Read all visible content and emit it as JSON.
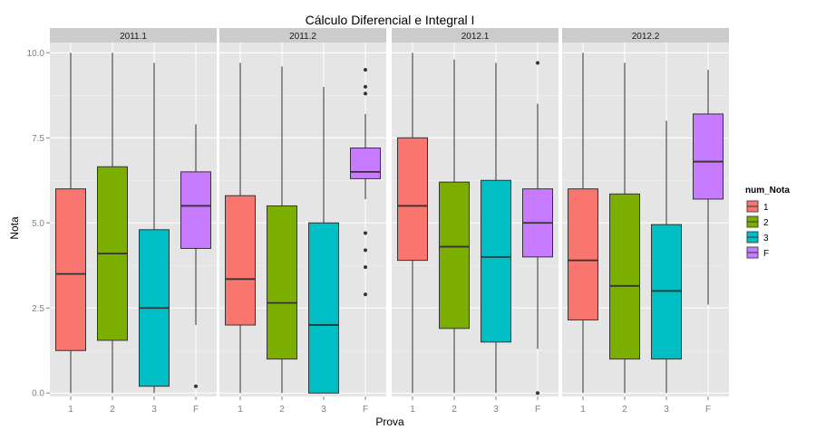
{
  "chart_data": {
    "type": "boxplot",
    "title": "Cálculo Diferencial e Integral I",
    "xlabel": "Prova",
    "ylabel": "Nota",
    "ylim": [
      -0.1,
      10.3
    ],
    "yticks": [
      0.0,
      2.5,
      5.0,
      7.5,
      10.0
    ],
    "ytick_labels": [
      "0.0",
      "2.5",
      "5.0",
      "7.5",
      "10.0"
    ],
    "categories": [
      "1",
      "2",
      "3",
      "F"
    ],
    "legend": {
      "title": "num_Nota",
      "position": "right",
      "entries": [
        {
          "label": "1",
          "color": "#F8766D"
        },
        {
          "label": "2",
          "color": "#7CAE00"
        },
        {
          "label": "3",
          "color": "#00BFC4"
        },
        {
          "label": "F",
          "color": "#C77CFF"
        }
      ]
    },
    "grid": true,
    "background": "#E5E5E5",
    "strip_background": "#CCCCCC",
    "panels": [
      {
        "label": "2011.1",
        "boxes": [
          {
            "category": "1",
            "whisker_low": 0.0,
            "q1": 1.25,
            "median": 3.5,
            "q3": 6.0,
            "whisker_high": 10.0,
            "outliers": []
          },
          {
            "category": "2",
            "whisker_low": 0.0,
            "q1": 1.55,
            "median": 4.1,
            "q3": 6.65,
            "whisker_high": 10.0,
            "outliers": []
          },
          {
            "category": "3",
            "whisker_low": 0.0,
            "q1": 0.2,
            "median": 2.5,
            "q3": 4.8,
            "whisker_high": 9.7,
            "outliers": []
          },
          {
            "category": "F",
            "whisker_low": 2.0,
            "q1": 4.25,
            "median": 5.5,
            "q3": 6.5,
            "whisker_high": 7.9,
            "outliers": [
              0.2
            ]
          }
        ]
      },
      {
        "label": "2011.2",
        "boxes": [
          {
            "category": "1",
            "whisker_low": 0.0,
            "q1": 2.0,
            "median": 3.35,
            "q3": 5.8,
            "whisker_high": 9.7,
            "outliers": []
          },
          {
            "category": "2",
            "whisker_low": 0.0,
            "q1": 1.0,
            "median": 2.65,
            "q3": 5.5,
            "whisker_high": 9.6,
            "outliers": []
          },
          {
            "category": "3",
            "whisker_low": 0.0,
            "q1": 0.0,
            "median": 2.0,
            "q3": 5.0,
            "whisker_high": 9.0,
            "outliers": []
          },
          {
            "category": "F",
            "whisker_low": 5.7,
            "q1": 6.3,
            "median": 6.5,
            "q3": 7.2,
            "whisker_high": 8.2,
            "outliers": [
              9.5,
              9.0,
              8.8,
              4.7,
              4.2,
              3.7,
              2.9
            ]
          }
        ]
      },
      {
        "label": "2012.1",
        "boxes": [
          {
            "category": "1",
            "whisker_low": 0.0,
            "q1": 3.9,
            "median": 5.5,
            "q3": 7.5,
            "whisker_high": 10.0,
            "outliers": []
          },
          {
            "category": "2",
            "whisker_low": 0.0,
            "q1": 1.9,
            "median": 4.3,
            "q3": 6.2,
            "whisker_high": 9.8,
            "outliers": []
          },
          {
            "category": "3",
            "whisker_low": 0.0,
            "q1": 1.5,
            "median": 4.0,
            "q3": 6.25,
            "whisker_high": 9.7,
            "outliers": []
          },
          {
            "category": "F",
            "whisker_low": 1.3,
            "q1": 4.0,
            "median": 5.0,
            "q3": 6.0,
            "whisker_high": 8.5,
            "outliers": [
              9.7,
              0.0
            ]
          }
        ]
      },
      {
        "label": "2012.2",
        "boxes": [
          {
            "category": "1",
            "whisker_low": 0.0,
            "q1": 2.15,
            "median": 3.9,
            "q3": 6.0,
            "whisker_high": 10.0,
            "outliers": []
          },
          {
            "category": "2",
            "whisker_low": 0.0,
            "q1": 1.0,
            "median": 3.15,
            "q3": 5.85,
            "whisker_high": 9.7,
            "outliers": []
          },
          {
            "category": "3",
            "whisker_low": 0.0,
            "q1": 1.0,
            "median": 3.0,
            "q3": 4.95,
            "whisker_high": 8.0,
            "outliers": []
          },
          {
            "category": "F",
            "whisker_low": 2.6,
            "q1": 5.7,
            "median": 6.8,
            "q3": 8.2,
            "whisker_high": 9.5,
            "outliers": []
          }
        ]
      }
    ]
  }
}
